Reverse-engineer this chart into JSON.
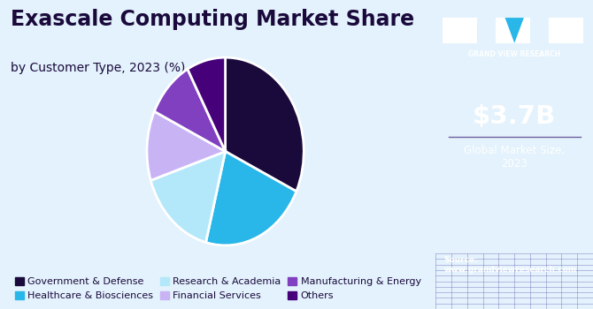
{
  "title": "Exascale Computing Market Share",
  "subtitle": "by Customer Type, 2023 (%)",
  "labels": [
    "Government & Defense",
    "Healthcare & Biosciences",
    "Research & Academia",
    "Financial Services",
    "Manufacturing & Energy",
    "Others"
  ],
  "sizes": [
    32,
    22,
    16,
    12,
    10,
    8
  ],
  "colors": [
    "#1a0a3c",
    "#29b6e8",
    "#b3e8fb",
    "#c8b3f5",
    "#8040c0",
    "#46007a"
  ],
  "startangle": 90,
  "bg_color": "#e3f2fc",
  "right_panel_color": "#2b1860",
  "right_panel_bottom_color": "#3a2870",
  "market_size_text": "$3.7B",
  "market_size_label": "Global Market Size,\n2023",
  "source_text": "Source:\nwww.grandviewresearch.com",
  "legend_fontsize": 8.0,
  "title_fontsize": 17,
  "subtitle_fontsize": 10,
  "title_color": "#1a0a3c",
  "legend_text_color": "#1a0a3c",
  "logo_text": "GRAND VIEW RESEARCH",
  "logo_fontsize": 5.5,
  "market_size_fontsize": 21,
  "market_label_fontsize": 8.5,
  "source_fontsize": 6.5,
  "divider_color": "#7060a0",
  "grid_line_color": "#5a4aaa"
}
